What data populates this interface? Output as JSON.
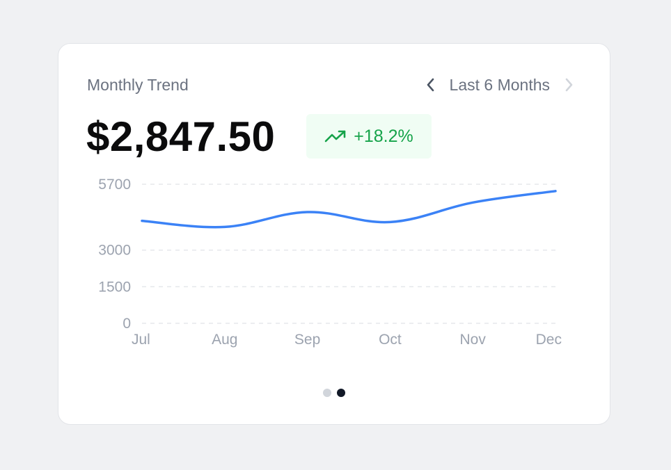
{
  "card": {
    "title": "Monthly Trend",
    "period_label": "Last 6 Months",
    "total_value": "$2,847.50",
    "change_text": "+18.2%"
  },
  "colors": {
    "line": "#3b82f6",
    "positive": "#16a34a",
    "positive_bg": "#f0fdf4",
    "grid": "#e5e7eb",
    "tick_text": "#9ca3af"
  },
  "icons": {
    "prev": "chevron-left-icon",
    "next": "chevron-right-icon",
    "trend": "trending-up-icon"
  },
  "pagination": {
    "pages": 2,
    "active": 2
  },
  "chart_data": {
    "type": "line",
    "x": [
      "Jul",
      "Aug",
      "Sep",
      "Oct",
      "Nov",
      "Dec"
    ],
    "series": [
      {
        "values": [
          4200,
          3950,
          4560,
          4150,
          4950,
          5420
        ]
      }
    ],
    "y_ticks": [
      0,
      1500,
      3000,
      5700
    ],
    "ylim": [
      0,
      6000
    ],
    "grid": true,
    "grid_style": "dashed",
    "legend": "none"
  }
}
